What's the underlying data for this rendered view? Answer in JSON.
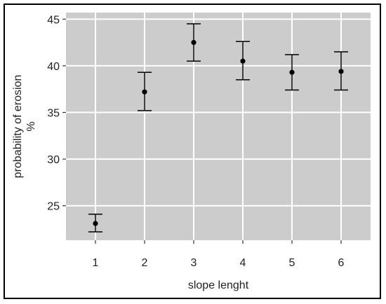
{
  "chart_data": {
    "type": "scatter",
    "title": "",
    "xlabel": "slope lenght",
    "ylabel_line1": "probability of erosion",
    "ylabel_line2": "%",
    "x": [
      1,
      2,
      3,
      4,
      5,
      6
    ],
    "series": [
      {
        "y": [
          23.1,
          37.2,
          42.5,
          40.5,
          39.3,
          39.4
        ],
        "y_lower": [
          22.2,
          35.2,
          40.5,
          38.5,
          37.4,
          37.4
        ],
        "y_upper": [
          24.1,
          39.3,
          44.5,
          42.6,
          41.2,
          41.5
        ]
      }
    ],
    "xticks": [
      1,
      2,
      3,
      4,
      5,
      6
    ],
    "xtick_labels": [
      "1",
      "2",
      "3",
      "4",
      "5",
      "6"
    ],
    "yticks": [
      25,
      30,
      35,
      40,
      45
    ],
    "ytick_labels": [
      "25",
      "30",
      "35",
      "40",
      "45"
    ],
    "xlim": [
      0.4,
      6.6
    ],
    "ylim": [
      21.3,
      45.7
    ],
    "grid": true,
    "legend": "none",
    "colors": {
      "panel": "#cccccc",
      "grid": "#ffffff",
      "point": "#000000",
      "errorbar": "#000000",
      "frame": "#000000"
    }
  }
}
